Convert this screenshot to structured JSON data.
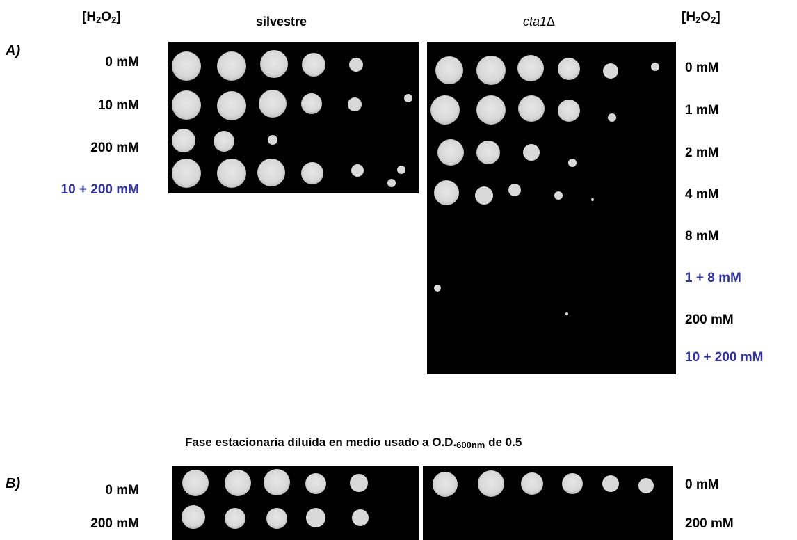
{
  "panel_a": {
    "letter": "A)",
    "h2o2_left": {
      "pre": "[H",
      "s1": "2",
      "mid": "O",
      "s2": "2",
      "post": "]"
    },
    "h2o2_right": {
      "pre": "[H",
      "s1": "2",
      "mid": "O",
      "s2": "2",
      "post": "]"
    },
    "strain_wt": "silvestre",
    "strain_mutant": {
      "italic": "cta1",
      "symbol": "Δ"
    },
    "wt_conditions": [
      "0 mM",
      "10 mM",
      "200 mM",
      "10 + 200 mM"
    ],
    "mutant_conditions": [
      "0 mM",
      "1 mM",
      "2 mM",
      "4 mM",
      "8 mM",
      "1 + 8 mM",
      "200 mM",
      "10 + 200 mM"
    ]
  },
  "panel_b": {
    "letter": "B)",
    "title_pre": "Fase estacionaria diluída en medio usado a O.D.",
    "title_sub": "600nm",
    "title_post": " de 0.5",
    "left_conditions": [
      "0 mM",
      "200 mM"
    ],
    "right_conditions": [
      "0 mM",
      "200 mM"
    ]
  },
  "colors": {
    "plate": "#000000",
    "colony": "#d8d8d8",
    "pretreat_label": "#33339a"
  }
}
